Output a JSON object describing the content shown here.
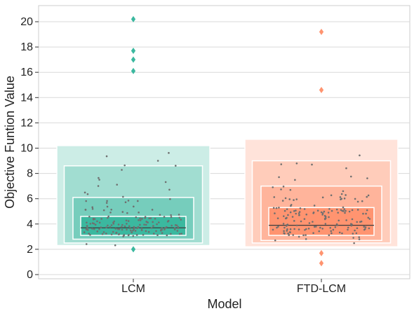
{
  "chart_data": {
    "type": "boxen",
    "title": "",
    "xlabel": "Model",
    "ylabel": "Objective Funtion Value",
    "ylim": [
      0,
      21
    ],
    "yticks": [
      0,
      2,
      4,
      6,
      8,
      10,
      12,
      14,
      16,
      18,
      20
    ],
    "grid": "horizontal",
    "legend": "none",
    "categories": [
      "LCM",
      "FTD-LCM"
    ],
    "series": [
      {
        "category": "LCM",
        "color": "#3bb89f",
        "median": 3.7,
        "boxes": [
          {
            "low": 3.1,
            "high": 4.6
          },
          {
            "low": 2.8,
            "high": 6.1
          },
          {
            "low": 2.5,
            "high": 8.6
          },
          {
            "low": 2.3,
            "high": 10.2
          }
        ],
        "outliers": [
          2.0,
          16.1,
          17.0,
          17.7,
          20.2
        ]
      },
      {
        "category": "FTD-LCM",
        "color": "#ff9470",
        "median": 3.9,
        "boxes": [
          {
            "low": 3.1,
            "high": 5.3
          },
          {
            "low": 2.7,
            "high": 7.0
          },
          {
            "low": 2.5,
            "high": 9.0
          },
          {
            "low": 2.2,
            "high": 10.7
          }
        ],
        "outliers": [
          0.9,
          1.7,
          14.6,
          19.2
        ]
      }
    ]
  }
}
